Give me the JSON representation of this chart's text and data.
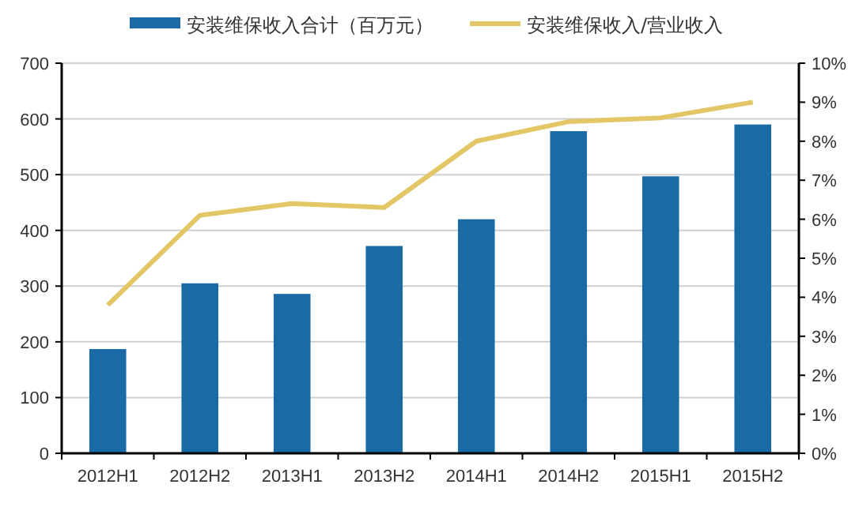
{
  "chart_data": {
    "type": "bar",
    "categories": [
      "2012H1",
      "2012H2",
      "2013H1",
      "2013H2",
      "2014H1",
      "2014H2",
      "2015H1",
      "2015H2"
    ],
    "series": [
      {
        "name": "安装维保收入合计（百万元）",
        "color": "#1a6aa5",
        "values": [
          187,
          305,
          286,
          372,
          420,
          578,
          497,
          590
        ]
      },
      {
        "name": "安装维保收入/营业收入",
        "type": "line",
        "axis": "y2",
        "color": "#e3c665",
        "values": [
          3.8,
          6.1,
          6.4,
          6.3,
          8.0,
          8.5,
          8.6,
          9.0
        ]
      }
    ],
    "ylim": [
      0,
      700
    ],
    "yticks": [
      0,
      100,
      200,
      300,
      400,
      500,
      600,
      700
    ],
    "y2lim": [
      0,
      10
    ],
    "y2ticks": [
      {
        "value": 0,
        "label": "0%"
      },
      {
        "value": 1,
        "label": "1%"
      },
      {
        "value": 2,
        "label": "2%"
      },
      {
        "value": 3,
        "label": "3%"
      },
      {
        "value": 4,
        "label": "4%"
      },
      {
        "value": 5,
        "label": "5%"
      },
      {
        "value": 6,
        "label": "6%"
      },
      {
        "value": 7,
        "label": "7%"
      },
      {
        "value": 8,
        "label": "8%"
      },
      {
        "value": 9,
        "label": "9%"
      },
      {
        "value": 10,
        "label": "10%"
      }
    ],
    "grid": "y",
    "legend": "top",
    "marker": "none",
    "line_style": "solid"
  }
}
